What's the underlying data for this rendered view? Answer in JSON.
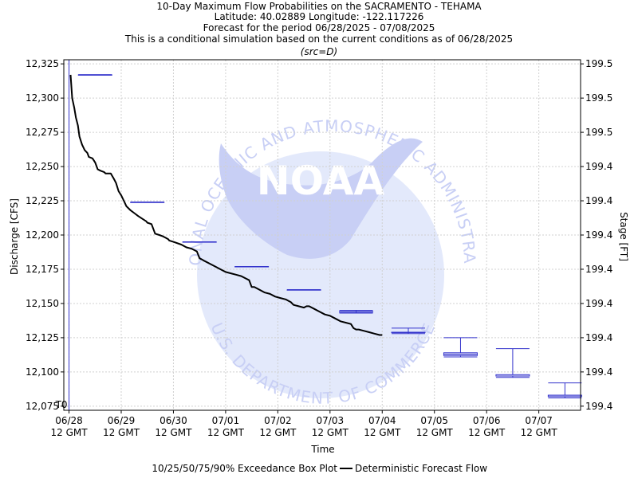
{
  "header": {
    "title": "10-Day Maximum Flow Probabilities on the SACRAMENTO - TEHAMA",
    "location": "Latitude: 40.02889 Longitude: -122.117226",
    "period": "Forecast for the period 06/28/2025 - 07/08/2025",
    "note": "This is a conditional simulation based on the current conditions as of 06/28/2025",
    "source": "(src=D)"
  },
  "legend": {
    "box_label": "10/25/50/75/90% Exceedance Box Plot",
    "line_label": "Deterministic Forecast Flow"
  },
  "watermark": {
    "top_text": "NATIONAL OCEANIC AND ATMOSPHERIC ADMINISTRATION",
    "bottom_text": "U.S. DEPARTMENT OF COMMERCE",
    "logo_text": "NOAA"
  },
  "chart_data": {
    "type": "line",
    "title": "10-Day Maximum Flow Probabilities on the SACRAMENTO - TEHAMA",
    "xlabel": "Time",
    "ylabel": "Discharge [CFS]",
    "y2label": "Stage [FT]",
    "t0_label": "T0",
    "x_ticks": [
      "06/28|12 GMT",
      "06/29|12 GMT",
      "06/30|12 GMT",
      "07/01|12 GMT",
      "07/02|12 GMT",
      "07/03|12 GMT",
      "07/04|12 GMT",
      "07/05|12 GMT",
      "07/06|12 GMT",
      "07/07|12 GMT"
    ],
    "xlim_days": [
      -0.1,
      9.8
    ],
    "ylim": [
      12072,
      12328
    ],
    "y_ticks": [
      12075,
      12100,
      12125,
      12150,
      12175,
      12200,
      12225,
      12250,
      12275,
      12300,
      12325
    ],
    "y_tick_labels": [
      "12,075",
      "12,100",
      "12,125",
      "12,150",
      "12,175",
      "12,200",
      "12,225",
      "12,250",
      "12,275",
      "12,300",
      "12,325"
    ],
    "y2_tick_labels": [
      "199.4",
      "199.4",
      "199.4",
      "199.4",
      "199.4",
      "199.4",
      "199.4",
      "199.4",
      "199.5",
      "199.5",
      "199.5"
    ],
    "grid": true,
    "t0_day": 0.0,
    "colors": {
      "line": "#000000",
      "box": "#3333cc",
      "t0": "#3333cc",
      "grid": "#d0d0d0",
      "watermark": "#c8cff5"
    },
    "series": [
      {
        "name": "Deterministic Forecast Flow",
        "days": [
          0.03,
          0.06,
          0.1,
          0.13,
          0.17,
          0.2,
          0.25,
          0.3,
          0.35,
          0.38,
          0.45,
          0.5,
          0.55,
          0.6,
          0.67,
          0.7,
          0.8,
          0.86,
          0.9,
          0.95,
          1.0,
          1.05,
          1.1,
          1.18,
          1.25,
          1.32,
          1.4,
          1.48,
          1.5,
          1.58,
          1.65,
          1.73,
          1.8,
          1.85,
          1.9,
          1.92,
          2.0,
          2.15,
          2.25,
          2.35,
          2.45,
          2.5,
          2.55,
          2.6,
          2.7,
          2.8,
          2.9,
          3.0,
          3.1,
          3.2,
          3.3,
          3.4,
          3.45,
          3.5,
          3.55,
          3.65,
          3.75,
          3.85,
          3.95,
          4.05,
          4.15,
          4.25,
          4.3,
          4.4,
          4.5,
          4.55,
          4.6,
          4.7,
          4.8,
          4.9,
          5.0,
          5.1,
          5.2,
          5.3,
          5.4,
          5.45,
          5.5,
          5.55,
          5.65,
          5.75,
          5.85,
          5.95,
          6.0
        ],
        "values": [
          12317,
          12300,
          12293,
          12286,
          12280,
          12272,
          12266,
          12262,
          12260,
          12257,
          12256,
          12253,
          12248,
          12247,
          12246,
          12245,
          12245,
          12241,
          12238,
          12232,
          12229,
          12225,
          12221,
          12218,
          12216,
          12214,
          12212,
          12210,
          12209,
          12208,
          12201,
          12200,
          12199,
          12198,
          12197,
          12196,
          12195,
          12193,
          12191,
          12190,
          12188,
          12183,
          12182,
          12181,
          12179,
          12177,
          12175,
          12173,
          12172,
          12171,
          12170,
          12168,
          12167,
          12162,
          12162,
          12160,
          12158,
          12157,
          12155,
          12154,
          12153,
          12151,
          12149,
          12148,
          12147,
          12148,
          12148,
          12146,
          12144,
          12142,
          12141,
          12139,
          12137,
          12136,
          12135,
          12132,
          12131,
          12131,
          12130,
          12129,
          12128,
          12127,
          12127
        ]
      }
    ],
    "box_plots": [
      {
        "day": 0.5,
        "p10": 12317,
        "p25": 12317,
        "p50": 12317,
        "p75": 12317,
        "p90": 12317
      },
      {
        "day": 1.5,
        "p10": 12224,
        "p25": 12224,
        "p50": 12224,
        "p75": 12224,
        "p90": 12224
      },
      {
        "day": 2.5,
        "p10": 12195,
        "p25": 12195,
        "p50": 12195,
        "p75": 12195,
        "p90": 12195
      },
      {
        "day": 3.5,
        "p10": 12177,
        "p25": 12177,
        "p50": 12177,
        "p75": 12177,
        "p90": 12177
      },
      {
        "day": 4.5,
        "p10": 12160,
        "p25": 12160,
        "p50": 12160,
        "p75": 12160,
        "p90": 12160
      },
      {
        "day": 5.5,
        "p10": 12143,
        "p25": 12144,
        "p50": 12144,
        "p75": 12144,
        "p90": 12145
      },
      {
        "day": 6.5,
        "p10": 12128,
        "p25": 12129,
        "p50": 12129,
        "p75": 12129,
        "p90": 12132
      },
      {
        "day": 7.5,
        "p10": 12111,
        "p25": 12112,
        "p50": 12113,
        "p75": 12114,
        "p90": 12125
      },
      {
        "day": 8.5,
        "p10": 12096,
        "p25": 12097,
        "p50": 12097,
        "p75": 12098,
        "p90": 12117
      },
      {
        "day": 9.5,
        "p10": 12081,
        "p25": 12082,
        "p50": 12083,
        "p75": 12083,
        "p90": 12092
      }
    ]
  }
}
